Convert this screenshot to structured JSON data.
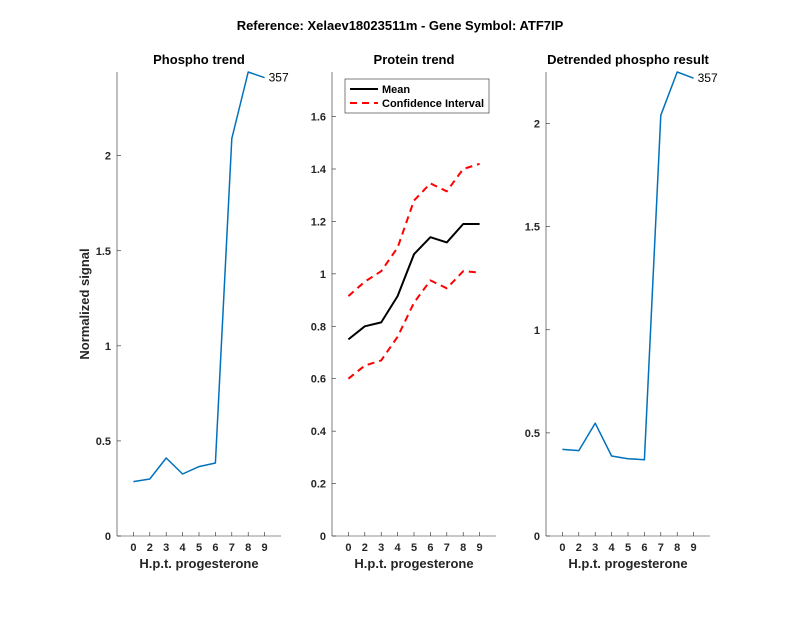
{
  "chart_data": [
    {
      "type": "line",
      "suptitle": "Reference:  Xelaev18023511m - Gene Symbol:  ATF7IP",
      "title": "Phospho trend",
      "xlabel": "H.p.t. progesterone",
      "ylabel": "Normalized signal",
      "categories": [
        "0",
        "2",
        "3",
        "4",
        "5",
        "6",
        "7",
        "8",
        "9"
      ],
      "ylim": [
        0,
        2.44
      ],
      "yticks": [
        0,
        0.5,
        1,
        1.5,
        2
      ],
      "ytick_labels": [
        "0",
        "0.5",
        "1",
        "1.5",
        "2"
      ],
      "series": [
        {
          "name": "357",
          "color": "#0072BD",
          "values": [
            0.286,
            0.3,
            0.41,
            0.326,
            0.365,
            0.384,
            2.09,
            2.44,
            2.41
          ]
        }
      ],
      "end_label": "357"
    },
    {
      "type": "line",
      "title": "Protein trend",
      "xlabel": "H.p.t. progesterone",
      "categories": [
        "0",
        "2",
        "3",
        "4",
        "5",
        "6",
        "7",
        "8",
        "9"
      ],
      "ylim": [
        0,
        1.77
      ],
      "yticks": [
        0,
        0.2,
        0.4,
        0.6,
        0.8,
        1,
        1.2,
        1.4,
        1.6
      ],
      "ytick_labels": [
        "0",
        "0.2",
        "0.4",
        "0.6",
        "0.8",
        "1",
        "1.2",
        "1.4",
        "1.6"
      ],
      "legend": {
        "placement": "top-left",
        "entries": [
          "Mean",
          "Confidence Interval"
        ]
      },
      "series": [
        {
          "name": "Mean",
          "color": "#000000",
          "style": "solid",
          "values": [
            0.75,
            0.8,
            0.815,
            0.915,
            1.075,
            1.14,
            1.12,
            1.19,
            1.19
          ]
        },
        {
          "name": "Confidence Interval",
          "color": "#FF0000",
          "style": "dashed",
          "values": [
            0.915,
            0.97,
            1.01,
            1.1,
            1.28,
            1.345,
            1.315,
            1.4,
            1.42
          ]
        },
        {
          "name": "Confidence Interval lower",
          "color": "#FF0000",
          "style": "dashed",
          "values": [
            0.6,
            0.65,
            0.67,
            0.76,
            0.89,
            0.975,
            0.945,
            1.01,
            1.005
          ]
        }
      ]
    },
    {
      "type": "line",
      "title": "Detrended phospho result",
      "xlabel": "H.p.t. progesterone",
      "categories": [
        "0",
        "2",
        "3",
        "4",
        "5",
        "6",
        "7",
        "8",
        "9"
      ],
      "ylim": [
        0,
        2.25
      ],
      "yticks": [
        0,
        0.5,
        1,
        1.5,
        2
      ],
      "ytick_labels": [
        "0",
        "0.5",
        "1",
        "1.5",
        "2"
      ],
      "series": [
        {
          "name": "357",
          "color": "#0072BD",
          "values": [
            0.42,
            0.414,
            0.547,
            0.388,
            0.375,
            0.37,
            2.04,
            2.25,
            2.22
          ]
        }
      ],
      "end_label": "357"
    }
  ]
}
